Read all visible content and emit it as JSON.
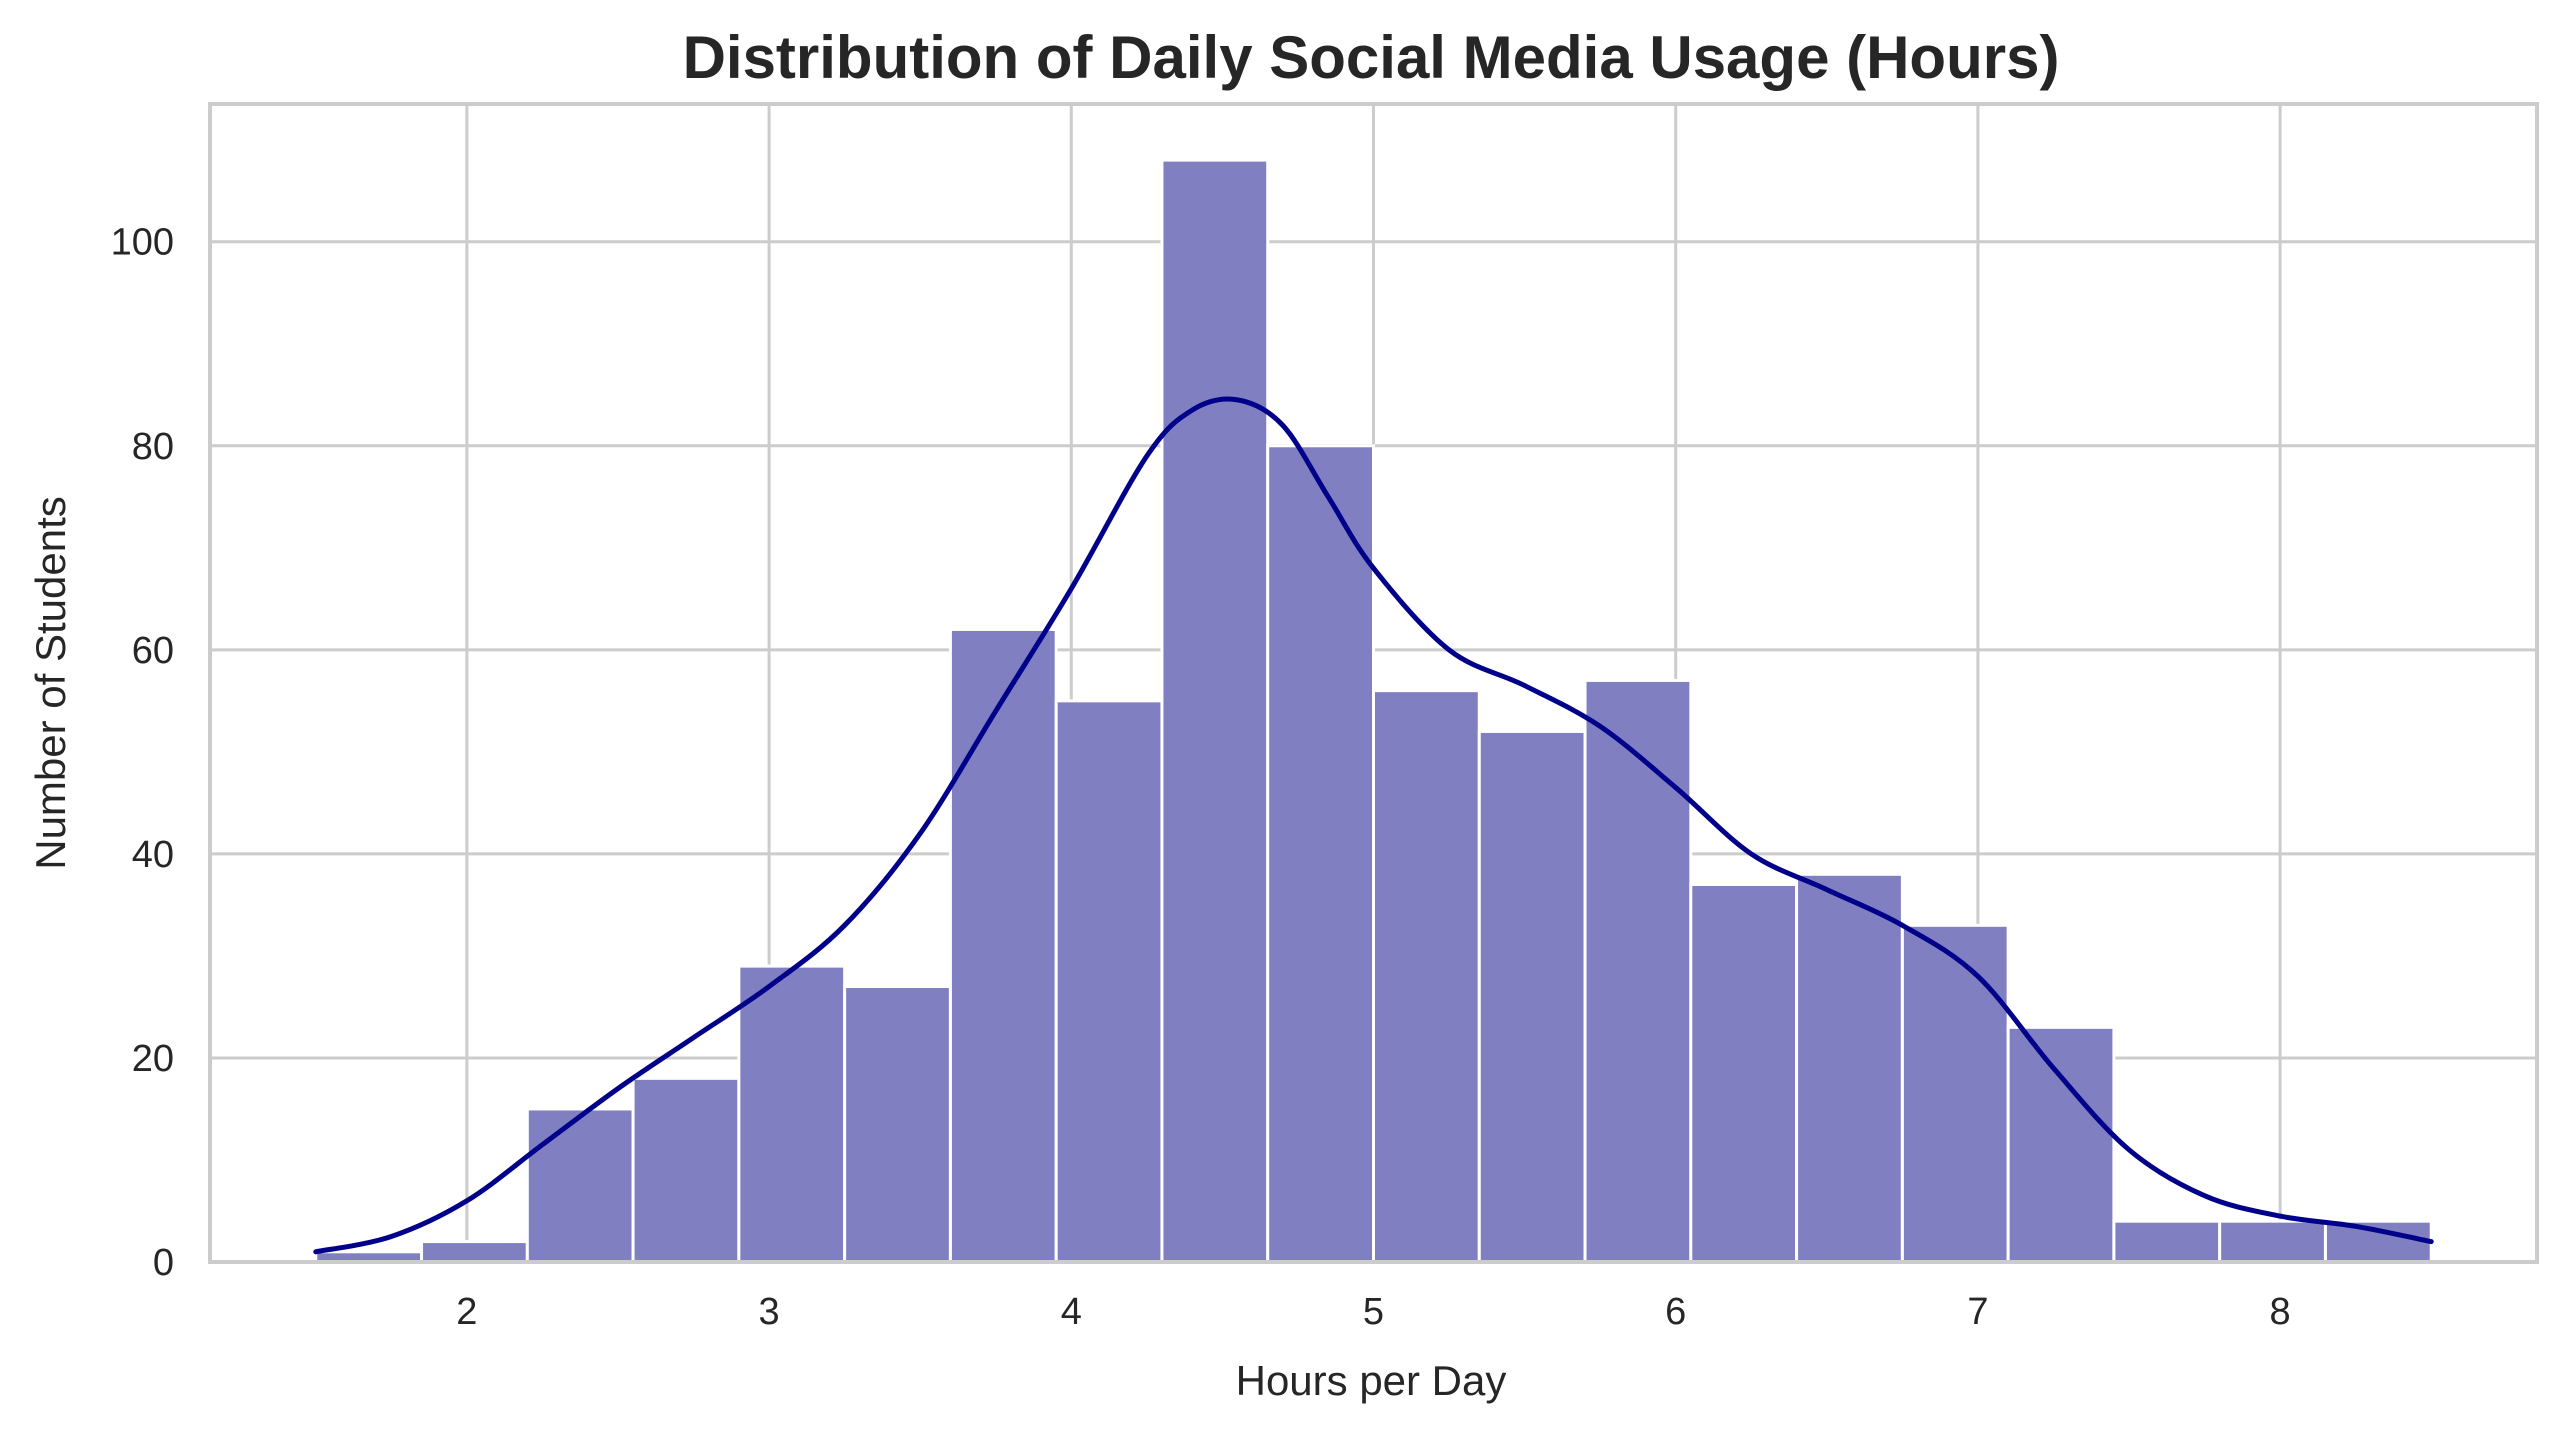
{
  "chart_data": {
    "type": "bar",
    "subtype": "histogram",
    "title": "Distribution of Daily Social Media Usage (Hours)",
    "xlabel": "Hours per Day",
    "ylabel": "Number of Students",
    "xlim": [
      1.15,
      8.85
    ],
    "ylim": [
      0,
      113.5
    ],
    "x_ticks": [
      2,
      3,
      4,
      5,
      6,
      7,
      8
    ],
    "y_ticks": [
      0,
      20,
      40,
      60,
      80,
      100
    ],
    "grid": true,
    "bin_edges": [
      1.5,
      1.85,
      2.2,
      2.55,
      2.9,
      3.25,
      3.6,
      3.95,
      4.3,
      4.65,
      5.0,
      5.35,
      5.7,
      6.05,
      6.4,
      6.75,
      7.1,
      7.45,
      7.8,
      8.15,
      8.5
    ],
    "counts": [
      1,
      2,
      15,
      18,
      29,
      27,
      62,
      55,
      108,
      80,
      56,
      52,
      57,
      37,
      38,
      33,
      23,
      4,
      4,
      4
    ],
    "kde": {
      "x": [
        1.5,
        1.75,
        2.0,
        2.25,
        2.5,
        2.75,
        3.0,
        3.25,
        3.5,
        3.75,
        4.0,
        4.25,
        4.4,
        4.55,
        4.7,
        4.85,
        5.0,
        5.25,
        5.5,
        5.75,
        6.0,
        6.25,
        6.5,
        6.75,
        7.0,
        7.25,
        7.5,
        7.75,
        8.0,
        8.25,
        8.5
      ],
      "y": [
        1,
        2.5,
        6,
        11.5,
        17,
        22,
        27,
        33,
        42,
        54,
        66,
        79,
        83.5,
        84.5,
        82,
        75,
        68,
        60,
        56.5,
        52.5,
        46.5,
        40,
        36.5,
        33,
        28,
        19,
        11,
        6.5,
        4.5,
        3.5,
        2
      ]
    },
    "bar_color": "#7f7fc1",
    "line_color": "#00008b"
  }
}
